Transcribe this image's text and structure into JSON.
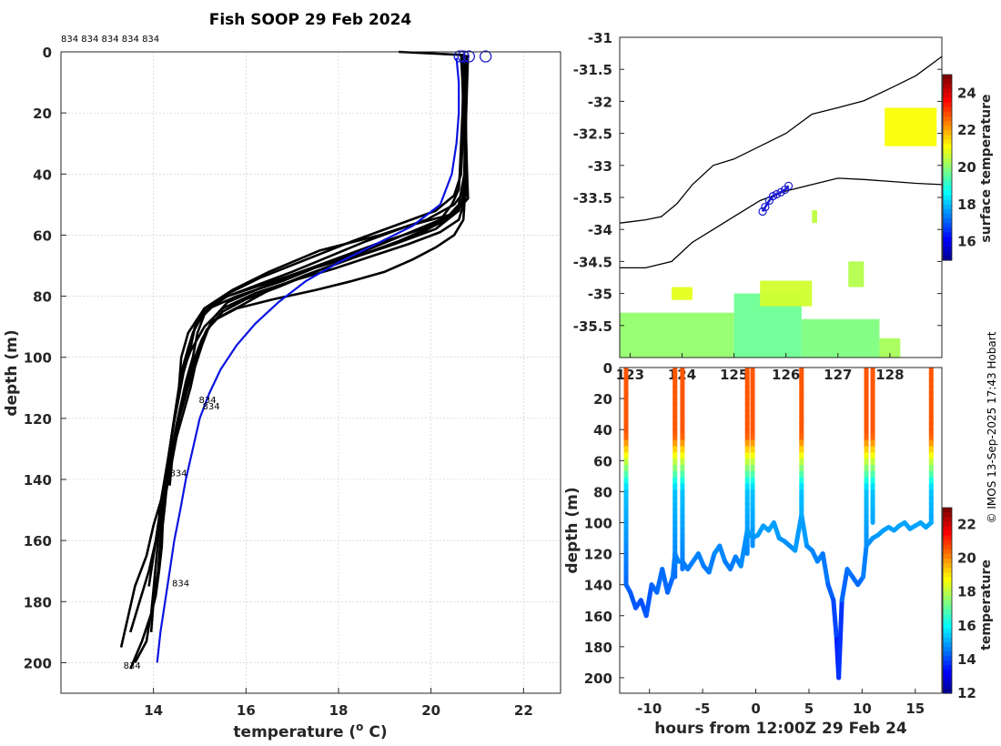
{
  "figure_title": "Fish SOOP 29 Feb 2024",
  "top_label": "834 834 834 834 834",
  "credit": "© IMOS 13-Sep-2025 17:43 Hobart",
  "colors": {
    "profile": "#000000",
    "mean": "#0a14e0",
    "marker": "#1a1ad0",
    "coast": "#000000"
  },
  "chart_data": [
    {
      "id": "profiles",
      "type": "line",
      "title": "Fish SOOP 29 Feb 2024",
      "xlabel": "temperature (o C)",
      "ylabel": "depth (m)",
      "xlim": [
        12,
        22.8
      ],
      "ylim": [
        210,
        0
      ],
      "xticks": [
        14,
        16,
        18,
        20,
        22
      ],
      "yticks": [
        0,
        20,
        40,
        60,
        80,
        100,
        120,
        140,
        160,
        180,
        200
      ],
      "profile_labels": [
        {
          "text": "834",
          "t": 14.98,
          "d": 115
        },
        {
          "text": "834",
          "t": 15.06,
          "d": 117
        },
        {
          "text": "834",
          "t": 14.35,
          "d": 139
        },
        {
          "text": "834",
          "t": 14.4,
          "d": 175
        },
        {
          "text": "834",
          "t": 13.35,
          "d": 202
        }
      ],
      "series": [
        {
          "name": "profile",
          "t": [
            19.3,
            20.7,
            20.7,
            20.68,
            20.65,
            20.62,
            20.6,
            20.45,
            20.2,
            19.4,
            18.6,
            17.6,
            16.8,
            15.8,
            15.2,
            14.9,
            14.75,
            14.6,
            14.55,
            14.45,
            14.35,
            14.3,
            14.25,
            14.2,
            14.18,
            14.12,
            14.05,
            13.92,
            13.85,
            13.6
          ],
          "d": [
            0,
            1,
            10,
            20,
            30,
            40,
            45,
            50,
            55,
            60,
            65,
            70,
            75,
            80,
            84,
            90,
            97,
            105,
            112,
            120,
            130,
            140,
            148,
            155,
            162,
            170,
            178,
            186,
            193,
            200
          ]
        },
        {
          "name": "profile",
          "t": [
            20.72,
            20.72,
            20.7,
            20.68,
            20.65,
            20.5,
            20.1,
            19.2,
            18.3,
            17.3,
            16.3,
            15.5,
            15.1,
            14.95,
            14.85,
            14.7,
            14.6,
            14.5,
            14.4,
            14.3,
            14.2,
            14.15,
            14.1,
            14.05,
            14.0,
            13.95,
            13.75,
            13.5
          ],
          "d": [
            1,
            10,
            20,
            30,
            40,
            47,
            52,
            57,
            62,
            68,
            74,
            80,
            86,
            92,
            100,
            108,
            115,
            122,
            130,
            137,
            145,
            152,
            160,
            168,
            176,
            184,
            193,
            202
          ]
        },
        {
          "name": "profile",
          "t": [
            20.7,
            20.72,
            20.75,
            20.76,
            20.77,
            20.7,
            20.5,
            19.9,
            18.9,
            17.6,
            16.5,
            15.7,
            15.1,
            14.75,
            14.6,
            14.55,
            14.45,
            14.35,
            14.25,
            14.2,
            14.15,
            14.1,
            14.0,
            13.95
          ],
          "d": [
            1,
            10,
            20,
            30,
            40,
            46,
            50,
            55,
            60,
            65,
            72,
            78,
            84,
            92,
            100,
            110,
            120,
            130,
            140,
            150,
            160,
            170,
            180,
            190
          ]
        },
        {
          "name": "profile",
          "t": [
            20.65,
            20.68,
            20.7,
            20.72,
            20.74,
            20.7,
            20.6,
            20.1,
            19.2,
            18.2,
            17.3,
            16.5,
            15.9,
            15.4,
            15.15,
            15.0,
            14.85,
            14.75,
            14.6,
            14.5,
            14.4,
            14.3,
            14.2,
            14.1,
            14.0,
            13.9
          ],
          "d": [
            1,
            10,
            20,
            30,
            40,
            47,
            52,
            58,
            63,
            68,
            73,
            78,
            83,
            87,
            91,
            96,
            102,
            108,
            115,
            122,
            130,
            138,
            146,
            155,
            165,
            175
          ]
        },
        {
          "name": "profile",
          "t": [
            20.7,
            20.72,
            20.74,
            20.76,
            20.78,
            20.8,
            20.5,
            19.8,
            18.8,
            17.9,
            17.0,
            16.2,
            15.6,
            15.3,
            15.1,
            14.95,
            14.8,
            14.65,
            14.5,
            14.4,
            14.3,
            14.2,
            14.15
          ],
          "d": [
            1,
            10,
            20,
            30,
            40,
            48,
            53,
            58,
            63,
            68,
            73,
            78,
            82,
            87,
            93,
            100,
            107,
            115,
            123,
            131,
            140,
            148,
            156
          ]
        },
        {
          "name": "profile",
          "t": [
            20.68,
            20.7,
            20.72,
            20.74,
            20.75,
            20.78,
            20.7,
            20.2,
            19.3,
            18.4,
            17.5,
            16.7,
            16.0,
            15.5,
            15.2,
            15.05,
            14.9,
            14.8,
            14.65,
            14.5,
            14.4,
            14.3,
            14.2
          ],
          "d": [
            1,
            10,
            20,
            30,
            40,
            45,
            50,
            56,
            62,
            67,
            72,
            77,
            81,
            85,
            90,
            96,
            103,
            110,
            118,
            126,
            134,
            142,
            150
          ]
        },
        {
          "name": "profile",
          "t": [
            20.8,
            20.78,
            20.76,
            20.74,
            20.72,
            20.72,
            20.7,
            20.5,
            20.1,
            19.6,
            19.0,
            18.3,
            17.5,
            16.6,
            15.8,
            15.3,
            15.05,
            14.9,
            14.75,
            14.6,
            14.5,
            14.4,
            14.35
          ],
          "d": [
            1,
            10,
            20,
            30,
            40,
            50,
            55,
            60,
            64,
            68,
            72,
            75,
            78,
            81,
            84,
            88,
            94,
            100,
            108,
            116,
            125,
            134,
            142
          ]
        },
        {
          "name": "profile",
          "t": [
            20.7,
            20.7,
            20.72,
            20.74,
            20.75,
            20.74,
            20.5,
            19.5,
            18.6,
            17.8,
            17.0,
            16.3,
            15.6,
            15.1,
            14.9,
            14.8,
            14.65,
            14.55,
            14.45,
            14.35,
            14.25,
            14.15,
            14.1
          ],
          "d": [
            1,
            10,
            20,
            30,
            40,
            48,
            53,
            57,
            62,
            67,
            72,
            76,
            80,
            84,
            90,
            97,
            105,
            113,
            121,
            130,
            139,
            148,
            156
          ]
        },
        {
          "name": "profile",
          "t": [
            20.75,
            20.74,
            20.74,
            20.73,
            20.72,
            20.6,
            20.3,
            19.7,
            19.0,
            18.1,
            17.2,
            16.4,
            15.6,
            15.1,
            14.85,
            14.7,
            14.55,
            14.45,
            14.35,
            14.25,
            14.15,
            14.05,
            13.9,
            13.7,
            13.5
          ],
          "d": [
            1,
            10,
            20,
            30,
            40,
            50,
            55,
            60,
            64,
            68,
            72,
            76,
            80,
            85,
            92,
            100,
            110,
            120,
            130,
            140,
            150,
            160,
            170,
            180,
            190
          ]
        },
        {
          "name": "profile",
          "t": [
            20.72,
            20.73,
            20.74,
            20.75,
            20.76,
            20.7,
            20.6,
            20.2,
            19.5,
            18.7,
            17.9,
            17.0,
            16.2,
            15.5,
            15.1,
            14.8,
            14.6,
            14.5,
            14.4,
            14.3,
            14.2,
            14.0,
            13.85,
            13.6,
            13.45,
            13.3
          ],
          "d": [
            1,
            10,
            20,
            30,
            40,
            50,
            55,
            59,
            63,
            67,
            71,
            75,
            79,
            84,
            90,
            98,
            106,
            115,
            125,
            135,
            145,
            155,
            165,
            175,
            185,
            195
          ]
        },
        {
          "name": "mean",
          "t": [
            20.55,
            20.6,
            20.6,
            20.55,
            20.45,
            20.2,
            19.6,
            18.8,
            18.0,
            17.3,
            16.7,
            16.2,
            15.8,
            15.45,
            15.2,
            15.0,
            14.85,
            14.7,
            14.58,
            14.45,
            14.35,
            14.25,
            14.15,
            14.08
          ],
          "d": [
            2,
            10,
            20,
            30,
            40,
            50,
            57,
            63,
            69,
            75,
            82,
            89,
            96,
            104,
            112,
            120,
            130,
            140,
            150,
            160,
            170,
            180,
            190,
            200
          ]
        }
      ],
      "markers": [
        {
          "t": 20.62,
          "d": 1.5
        },
        {
          "t": 20.7,
          "d": 1.5
        },
        {
          "t": 20.82,
          "d": 1.5
        },
        {
          "t": 21.18,
          "d": 1.5
        }
      ]
    },
    {
      "id": "map",
      "type": "heatmap",
      "xlim": [
        122.8,
        129.0
      ],
      "ylim": [
        -36,
        -31
      ],
      "xticks": [
        123,
        124,
        125,
        126,
        127,
        128
      ],
      "xtick_labels": [
        "123",
        "124",
        "125",
        "126",
        "127",
        "128"
      ],
      "yticks": [
        -31,
        -31.5,
        -32,
        -32.5,
        -33,
        -33.5,
        -34,
        -34.5,
        -35,
        -35.5
      ],
      "colorbar": {
        "label": "surface temperature",
        "min": 15,
        "max": 25,
        "ticks": [
          16,
          18,
          20,
          22,
          24
        ]
      },
      "coast_upper": {
        "lon": [
          122.8,
          123.0,
          123.3,
          123.6,
          123.9,
          124.2,
          124.6,
          125.0,
          125.5,
          126.0,
          126.5,
          127.0,
          127.5,
          128.0,
          128.5,
          129.0
        ],
        "lat": [
          -33.9,
          -33.88,
          -33.85,
          -33.8,
          -33.6,
          -33.3,
          -33.0,
          -32.9,
          -32.7,
          -32.5,
          -32.2,
          -32.1,
          -31.99,
          -31.8,
          -31.6,
          -31.3
        ]
      },
      "coast_lower": {
        "lon": [
          122.8,
          123.3,
          123.8,
          124.2,
          124.6,
          125.0,
          125.5,
          126.0,
          126.5,
          127.0,
          127.5,
          128.0,
          128.5,
          129.0
        ],
        "lat": [
          -34.6,
          -34.6,
          -34.5,
          -34.2,
          -34.0,
          -33.8,
          -33.55,
          -33.4,
          -33.3,
          -33.2,
          -33.22,
          -33.25,
          -33.28,
          -33.3
        ]
      },
      "track": {
        "lon": [
          125.55,
          125.6,
          125.68,
          125.75,
          125.82,
          125.9,
          125.98,
          126.05
        ],
        "lat": [
          -33.72,
          -33.65,
          -33.55,
          -33.48,
          -33.45,
          -33.42,
          -33.38,
          -33.32
        ]
      },
      "sst_patches": [
        {
          "lon": [
            122.8,
            125.0
          ],
          "lat": [
            -36.0,
            -35.3
          ],
          "value": 20.2
        },
        {
          "lon": [
            125.0,
            126.3
          ],
          "lat": [
            -36.0,
            -35.0
          ],
          "value": 19.8
        },
        {
          "lon": [
            126.3,
            127.8
          ],
          "lat": [
            -36.0,
            -35.4
          ],
          "value": 20.0
        },
        {
          "lon": [
            127.8,
            128.2
          ],
          "lat": [
            -36.0,
            -35.7
          ],
          "value": 20.4
        },
        {
          "lon": [
            125.5,
            126.5
          ],
          "lat": [
            -35.2,
            -34.8
          ],
          "value": 20.8
        },
        {
          "lon": [
            127.2,
            127.5
          ],
          "lat": [
            -34.9,
            -34.5
          ],
          "value": 20.5
        },
        {
          "lon": [
            127.9,
            128.9
          ],
          "lat": [
            -32.7,
            -32.1
          ],
          "value": 21.2
        },
        {
          "lon": [
            126.5,
            126.6
          ],
          "lat": [
            -33.9,
            -33.7
          ],
          "value": 20.6
        },
        {
          "lon": [
            123.8,
            124.2
          ],
          "lat": [
            -35.1,
            -34.9
          ],
          "value": 21.0
        }
      ]
    },
    {
      "id": "depth_time",
      "type": "scatter",
      "xlabel": "hours from 12:00Z 29 Feb 24",
      "ylabel": "depth (m)",
      "xlim": [
        -12.8,
        17.5
      ],
      "ylim": [
        210,
        0
      ],
      "xticks": [
        -10,
        -5,
        0,
        5,
        10,
        15
      ],
      "yticks": [
        0,
        20,
        40,
        60,
        80,
        100,
        120,
        140,
        160,
        180,
        200
      ],
      "colorbar": {
        "label": "temperature",
        "min": 12,
        "max": 23,
        "ticks": [
          12,
          14,
          16,
          18,
          20,
          22
        ]
      },
      "cast_hours": [
        -12.2,
        -7.6,
        -6.9,
        -0.8,
        -0.3,
        4.3,
        10.4,
        11.0,
        16.5
      ],
      "cast_bottoms": [
        140,
        135,
        130,
        120,
        115,
        95,
        115,
        100,
        100
      ],
      "bottom_track": {
        "x": [
          -12.2,
          -11.8,
          -11.3,
          -10.8,
          -10.3,
          -9.8,
          -9.3,
          -8.8,
          -8.3,
          -7.8,
          -7.6,
          -7.3,
          -6.9,
          -6.4,
          -5.9,
          -5.4,
          -4.9,
          -4.4,
          -3.9,
          -3.4,
          -2.9,
          -2.4,
          -1.9,
          -1.4,
          -0.8,
          -0.3,
          0.2,
          0.7,
          1.2,
          1.7,
          2.2,
          2.7,
          3.2,
          3.7,
          4.3,
          4.8,
          5.3,
          5.8,
          6.3,
          6.8,
          7.3,
          7.6,
          7.8,
          8.1,
          8.6,
          9.1,
          9.6,
          10.1,
          10.4,
          11.0,
          11.5,
          12.0,
          12.5,
          13.0,
          13.5,
          14.0,
          14.5,
          15.0,
          15.5,
          16.0,
          16.5
        ],
        "y": [
          140,
          145,
          155,
          150,
          160,
          140,
          145,
          130,
          145,
          135,
          120,
          125,
          125,
          130,
          125,
          120,
          128,
          132,
          120,
          115,
          125,
          130,
          122,
          128,
          105,
          110,
          108,
          102,
          105,
          100,
          110,
          112,
          115,
          118,
          95,
          115,
          118,
          125,
          120,
          140,
          150,
          175,
          200,
          150,
          130,
          135,
          140,
          135,
          115,
          110,
          108,
          105,
          103,
          105,
          102,
          100,
          104,
          102,
          100,
          103,
          100
        ]
      }
    }
  ]
}
